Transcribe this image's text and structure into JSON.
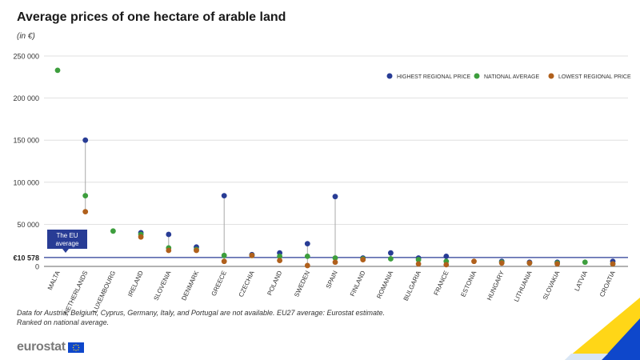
{
  "title": "Average prices of one hectare of arable land",
  "subtitle": "(in €)",
  "footnote": [
    "Data for Austria, Belgium, Cyprus, Germany, Italy, and Portugal are not available. EU27 average: Eurostat estimate.",
    "Ranked on national average."
  ],
  "brand": {
    "name": "eurostat"
  },
  "colors": {
    "highest": "#283c95",
    "national": "#3d9e3d",
    "lowest": "#b0601c",
    "eu_line": "#283c95",
    "grid": "#d9d9d9",
    "stem": "#a8a8a8"
  },
  "chart_data": {
    "type": "dot-range",
    "ylim": [
      0,
      250000
    ],
    "yticks": [
      0,
      50000,
      100000,
      150000,
      200000,
      250000
    ],
    "ytick_labels": [
      "0",
      "50 000",
      "100 000",
      "150 000",
      "200 000",
      "250 000"
    ],
    "legend": [
      {
        "key": "highest",
        "label": "HIGHEST REGIONAL PRICE"
      },
      {
        "key": "national",
        "label": "NATIONAL AVERAGE"
      },
      {
        "key": "lowest",
        "label": "LOWEST REGIONAL PRICE"
      }
    ],
    "legend_position": "top-right",
    "eu_average": {
      "value": 10578,
      "label": "€10 578",
      "annotation": [
        "The EU",
        "average"
      ]
    },
    "categories": [
      "MALTA",
      "NETHERLANDS",
      "LUXEMBOURG",
      "IRELAND",
      "SLOVENIA",
      "DENMARK",
      "GREECE",
      "CZECHIA",
      "POLAND",
      "SWEDEN",
      "SPAIN",
      "FINLAND",
      "ROMANIA",
      "BULGARIA",
      "FRANCE",
      "ESTONIA",
      "HUNGARY",
      "LITHUANIA",
      "SLOVAKIA",
      "LATVIA",
      "CROATIA"
    ],
    "series": [
      {
        "key": "highest",
        "name": "HIGHEST REGIONAL PRICE",
        "values": [
          null,
          150000,
          null,
          40000,
          38000,
          23000,
          84000,
          14000,
          16000,
          27000,
          83000,
          10000,
          16000,
          10000,
          12000,
          null,
          6000,
          5000,
          5000,
          null,
          6000
        ]
      },
      {
        "key": "national",
        "name": "NATIONAL AVERAGE",
        "values": [
          233000,
          84000,
          42000,
          38000,
          22000,
          20000,
          13000,
          13000,
          12000,
          12000,
          10000,
          9000,
          9000,
          8000,
          6000,
          null,
          5000,
          4000,
          4000,
          5000,
          3000
        ]
      },
      {
        "key": "lowest",
        "name": "LOWEST REGIONAL PRICE",
        "values": [
          null,
          65000,
          null,
          35000,
          19000,
          19000,
          6000,
          13000,
          7000,
          1000,
          5000,
          8000,
          null,
          3000,
          2000,
          6000,
          4000,
          4000,
          3000,
          null,
          3000
        ]
      }
    ]
  }
}
